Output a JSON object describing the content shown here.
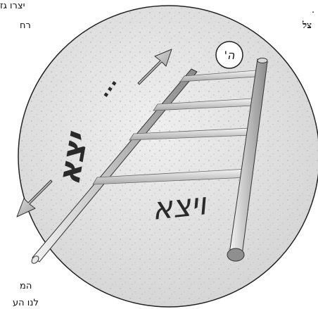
{
  "page_fragments": {
    "top_left_line1": "יצרו גז",
    "top_left_line2": "רח",
    "right_line1": ".",
    "right_line2": "צל",
    "bottom_left_line1": "המ",
    "bottom_left_line2": "לנו הע"
  },
  "illustration": {
    "badge_text": "ה'",
    "handwriting_upper": "...",
    "handwriting_lower": "ויצא",
    "handwriting_middle": "יצא",
    "colors": {
      "disc": "#dcdcdc",
      "rung": "#c9c9c9",
      "pole_dark": "#8f8f8f",
      "arrow": "#9a9a9a",
      "ink": "#2a2a2a"
    }
  }
}
